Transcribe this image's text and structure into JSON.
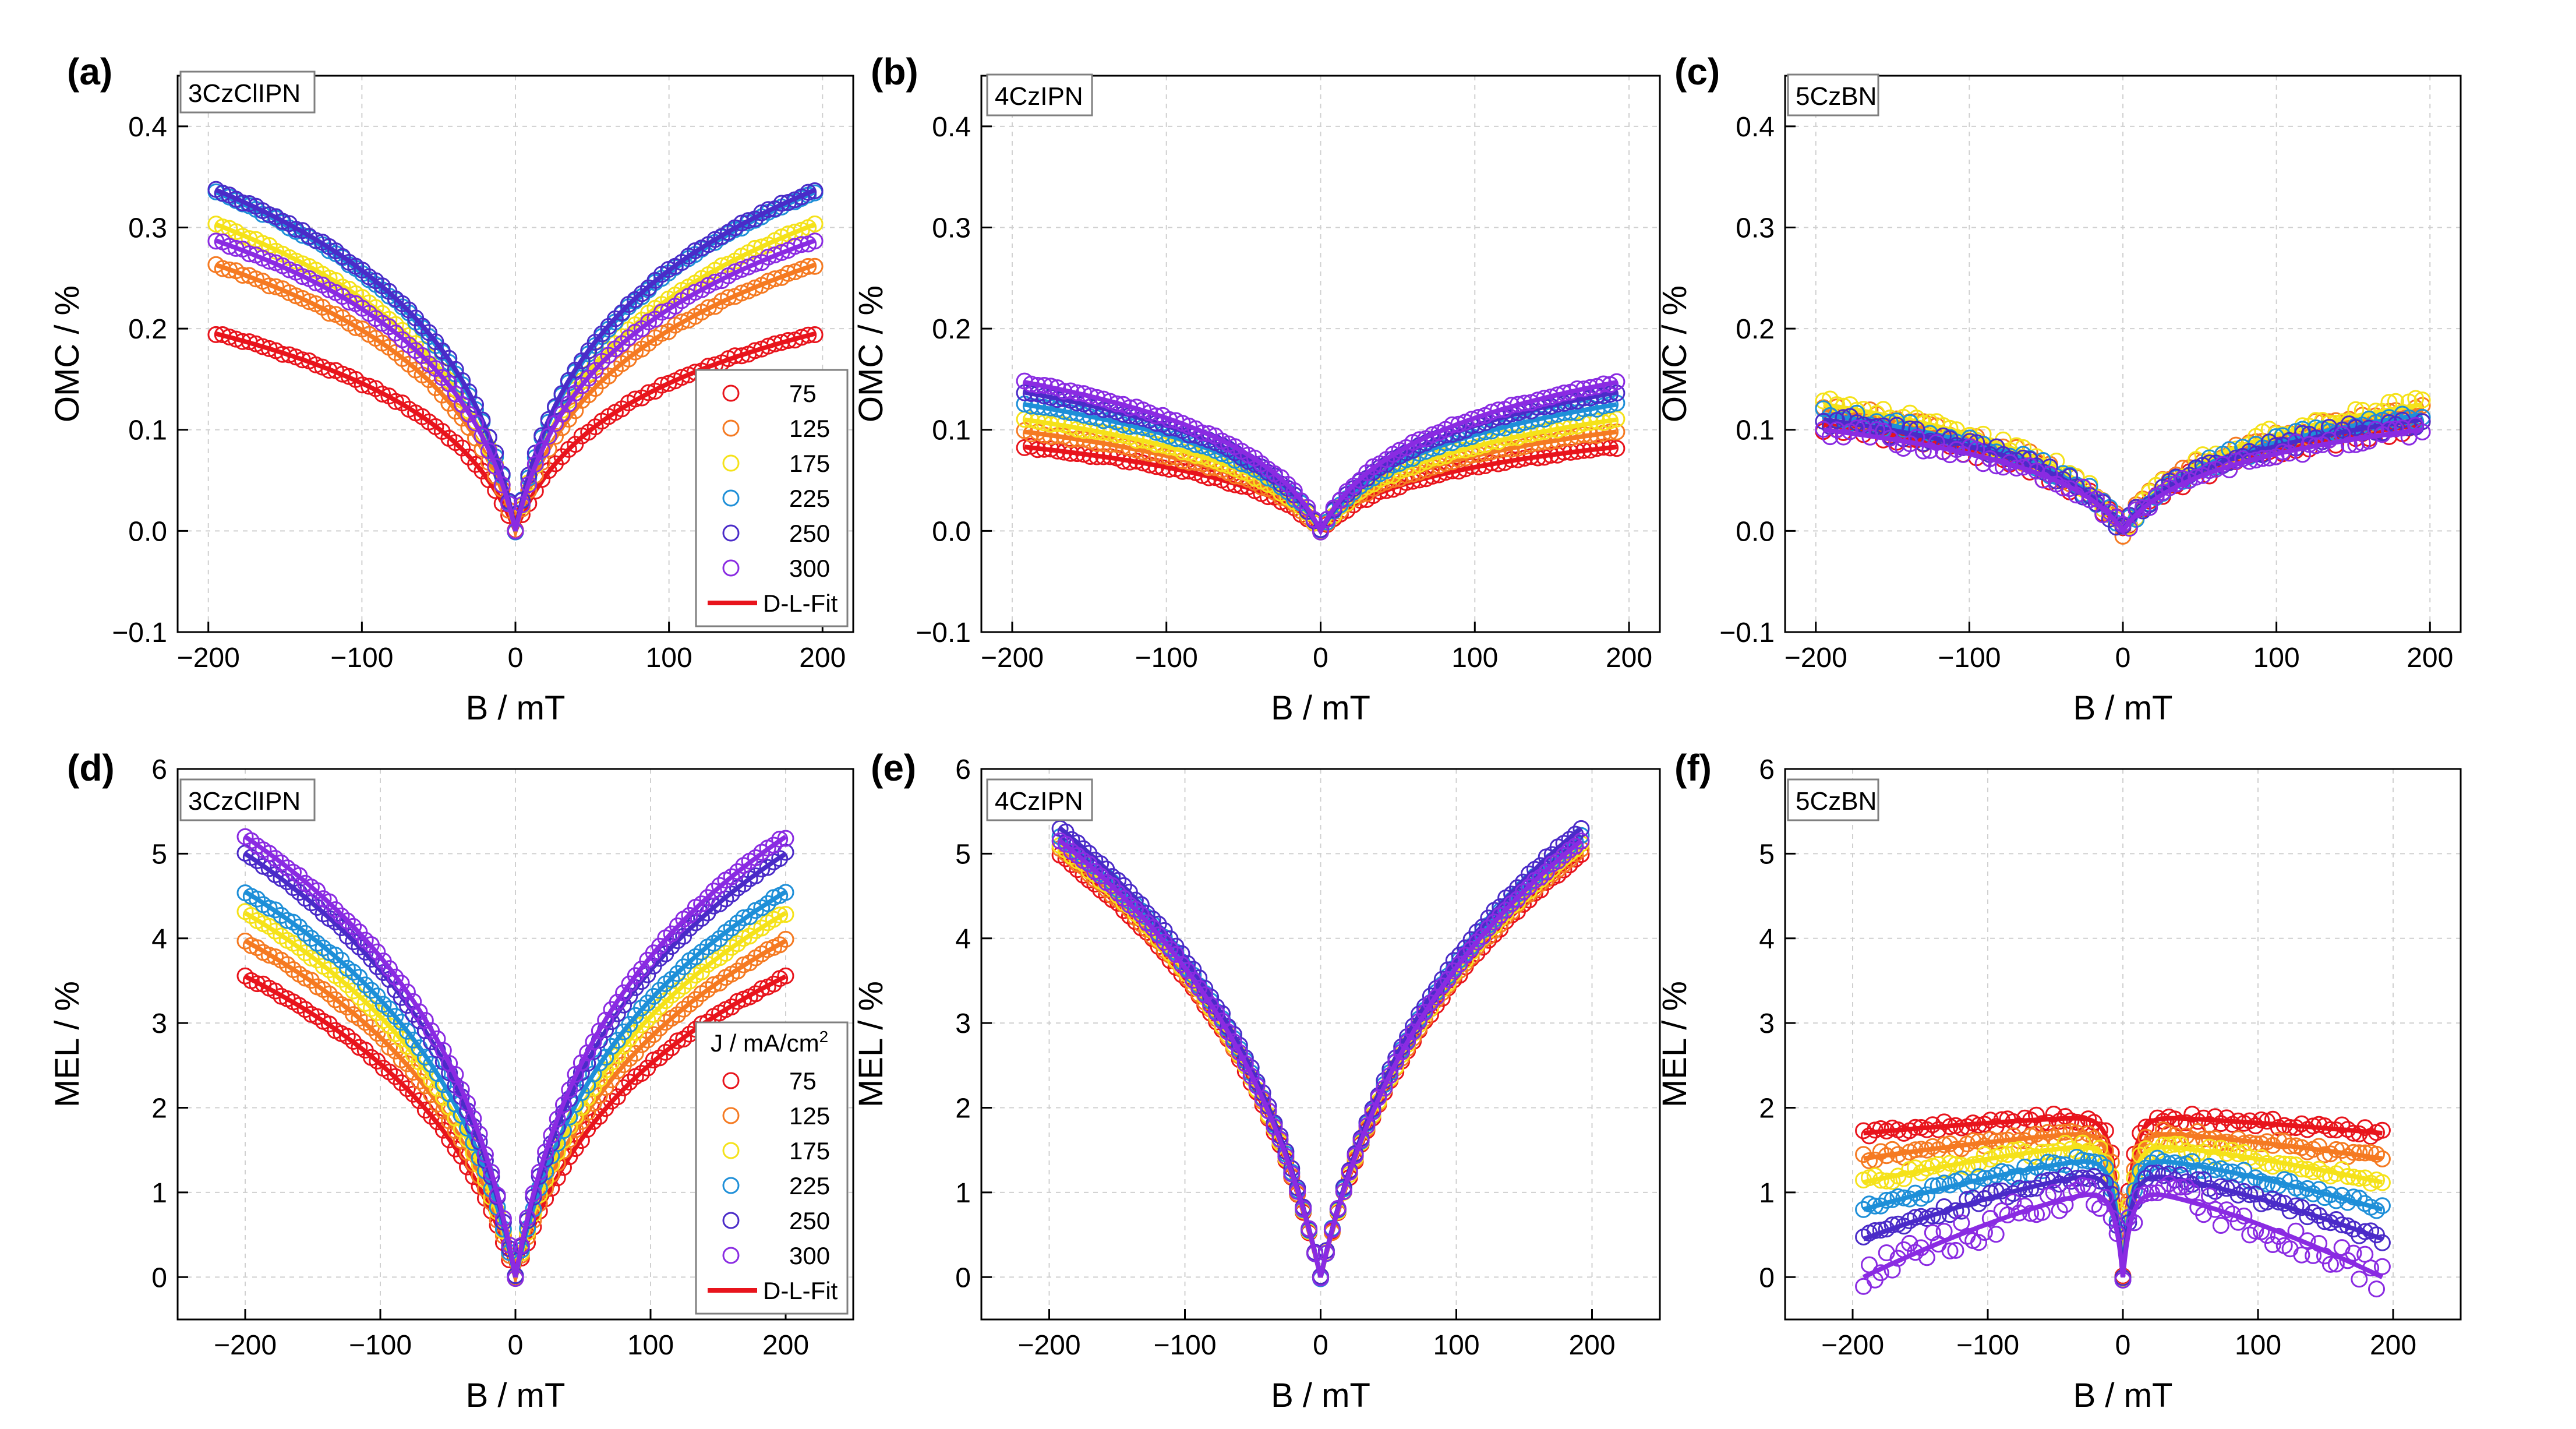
{
  "legend": {
    "series_labels": [
      "75",
      "125",
      "175",
      "225",
      "250",
      "300"
    ],
    "fit_label": "D-L-Fit",
    "title_d": "J / mA/cm",
    "title_d_sup": "2"
  },
  "colors": {
    "75": "#e8141c",
    "125": "#f57a22",
    "175": "#f5e21a",
    "225": "#1e8fd8",
    "250": "#4a2bc8",
    "300": "#8a2be2"
  },
  "chart_data": [
    {
      "panel": "(a)",
      "sample": "3CzClIPN",
      "type": "scatter",
      "xlabel": "B / mT",
      "ylabel": "OMC / %",
      "xlim": [
        -220,
        220
      ],
      "ylim": [
        -0.1,
        0.45
      ],
      "xticks": [
        -200,
        -100,
        0,
        100,
        200
      ],
      "yticks": [
        -0.1,
        0.0,
        0.1,
        0.2,
        0.3,
        0.4
      ],
      "ytick_labels": [
        "−0.1",
        "0.0",
        "0.1",
        "0.2",
        "0.3",
        "0.4"
      ],
      "xtick_labels": [
        "−200",
        "−100",
        "0",
        "100",
        "200"
      ],
      "x_extent": 195,
      "series": [
        {
          "name": "75",
          "sat": 0.195,
          "w": 22
        },
        {
          "name": "125",
          "sat": 0.263,
          "w": 20
        },
        {
          "name": "175",
          "sat": 0.303,
          "w": 19
        },
        {
          "name": "225",
          "sat": 0.335,
          "w": 18
        },
        {
          "name": "250",
          "sat": 0.337,
          "w": 17
        },
        {
          "name": "300",
          "sat": 0.287,
          "w": 17
        }
      ],
      "legend": true,
      "legend_title": false
    },
    {
      "panel": "(b)",
      "sample": "4CzIPN",
      "type": "scatter",
      "xlabel": "B / mT",
      "ylabel": "OMC / %",
      "xlim": [
        -220,
        220
      ],
      "ylim": [
        -0.1,
        0.45
      ],
      "xticks": [
        -200,
        -100,
        0,
        100,
        200
      ],
      "yticks": [
        -0.1,
        0.0,
        0.1,
        0.2,
        0.3,
        0.4
      ],
      "ytick_labels": [
        "−0.1",
        "0.0",
        "0.1",
        "0.2",
        "0.3",
        "0.4"
      ],
      "xtick_labels": [
        "−200",
        "−100",
        "0",
        "100",
        "200"
      ],
      "x_extent": 192,
      "series": [
        {
          "name": "75",
          "sat": 0.083,
          "w": 20
        },
        {
          "name": "125",
          "sat": 0.098,
          "w": 20
        },
        {
          "name": "175",
          "sat": 0.11,
          "w": 20
        },
        {
          "name": "225",
          "sat": 0.125,
          "w": 20
        },
        {
          "name": "250",
          "sat": 0.137,
          "w": 20
        },
        {
          "name": "300",
          "sat": 0.147,
          "w": 20
        }
      ],
      "legend": false
    },
    {
      "panel": "(c)",
      "sample": "5CzBN",
      "type": "scatter",
      "xlabel": "B / mT",
      "ylabel": "OMC / %",
      "xlim": [
        -220,
        220
      ],
      "ylim": [
        -0.1,
        0.45
      ],
      "xticks": [
        -200,
        -100,
        0,
        100,
        200
      ],
      "yticks": [
        -0.1,
        0.0,
        0.1,
        0.2,
        0.3,
        0.4
      ],
      "ytick_labels": [
        "−0.1",
        "0.0",
        "0.1",
        "0.2",
        "0.3",
        "0.4"
      ],
      "xtick_labels": [
        "−200",
        "−100",
        "0",
        "100",
        "200"
      ],
      "x_extent": 195,
      "series": [
        {
          "name": "75",
          "sat": 0.105,
          "w": 18
        },
        {
          "name": "125",
          "sat": 0.12,
          "w": 18
        },
        {
          "name": "175",
          "sat": 0.125,
          "w": 18
        },
        {
          "name": "225",
          "sat": 0.115,
          "w": 18
        },
        {
          "name": "250",
          "sat": 0.11,
          "w": 18
        },
        {
          "name": "300",
          "sat": 0.1,
          "w": 18
        }
      ],
      "legend": false
    },
    {
      "panel": "(d)",
      "sample": "3CzClIPN",
      "type": "scatter",
      "xlabel": "B / mT",
      "ylabel": "MEL / %",
      "xlim": [
        -250,
        250
      ],
      "ylim": [
        -0.5,
        6
      ],
      "xticks": [
        -200,
        -100,
        0,
        100,
        200
      ],
      "yticks": [
        0,
        1,
        2,
        3,
        4,
        5,
        6
      ],
      "ytick_labels": [
        "0",
        "1",
        "2",
        "3",
        "4",
        "5",
        "6"
      ],
      "xtick_labels": [
        "−200",
        "−100",
        "0",
        "100",
        "200"
      ],
      "x_extent": 200,
      "series": [
        {
          "name": "75",
          "sat": 3.55,
          "w": 35
        },
        {
          "name": "125",
          "sat": 3.97,
          "w": 33
        },
        {
          "name": "175",
          "sat": 4.3,
          "w": 32
        },
        {
          "name": "225",
          "sat": 4.55,
          "w": 30
        },
        {
          "name": "250",
          "sat": 5.0,
          "w": 28
        },
        {
          "name": "300",
          "sat": 5.2,
          "w": 27
        }
      ],
      "legend": true,
      "legend_title": true
    },
    {
      "panel": "(e)",
      "sample": "4CzIPN",
      "type": "scatter",
      "xlabel": "B / mT",
      "ylabel": "MEL / %",
      "xlim": [
        -250,
        250
      ],
      "ylim": [
        -0.5,
        6
      ],
      "xticks": [
        -200,
        -100,
        0,
        100,
        200
      ],
      "yticks": [
        0,
        1,
        2,
        3,
        4,
        5,
        6
      ],
      "ytick_labels": [
        "0",
        "1",
        "2",
        "3",
        "4",
        "5",
        "6"
      ],
      "xtick_labels": [
        "−200",
        "−100",
        "0",
        "100",
        "200"
      ],
      "x_extent": 192,
      "series": [
        {
          "name": "75",
          "sat": 4.98,
          "w": 42
        },
        {
          "name": "125",
          "sat": 5.05,
          "w": 42
        },
        {
          "name": "175",
          "sat": 5.1,
          "w": 42
        },
        {
          "name": "225",
          "sat": 5.2,
          "w": 42
        },
        {
          "name": "250",
          "sat": 5.3,
          "w": 42
        },
        {
          "name": "300",
          "sat": 5.15,
          "w": 42
        }
      ],
      "legend": false
    },
    {
      "panel": "(f)",
      "sample": "5CzBN",
      "type": "scatter",
      "xlabel": "B / mT",
      "ylabel": "MEL / %",
      "xlim": [
        -250,
        250
      ],
      "ylim": [
        -0.5,
        6
      ],
      "xticks": [
        -200,
        -100,
        0,
        100,
        200
      ],
      "yticks": [
        0,
        1,
        2,
        3,
        4,
        5,
        6
      ],
      "ytick_labels": [
        "0",
        "1",
        "2",
        "3",
        "4",
        "5",
        "6"
      ],
      "xtick_labels": [
        "−200",
        "−100",
        "0",
        "100",
        "200"
      ],
      "x_extent": 192,
      "series": [
        {
          "name": "75",
          "peak": 1.9,
          "end": 1.7,
          "w": 6
        },
        {
          "name": "125",
          "peak": 1.72,
          "end": 1.4,
          "w": 6
        },
        {
          "name": "175",
          "peak": 1.58,
          "end": 1.12,
          "w": 6
        },
        {
          "name": "225",
          "peak": 1.42,
          "end": 0.8,
          "w": 6
        },
        {
          "name": "250",
          "peak": 1.25,
          "end": 0.45,
          "w": 6
        },
        {
          "name": "300",
          "peak": 1.05,
          "end": 0.0,
          "w": 6
        }
      ],
      "legend": false
    }
  ]
}
